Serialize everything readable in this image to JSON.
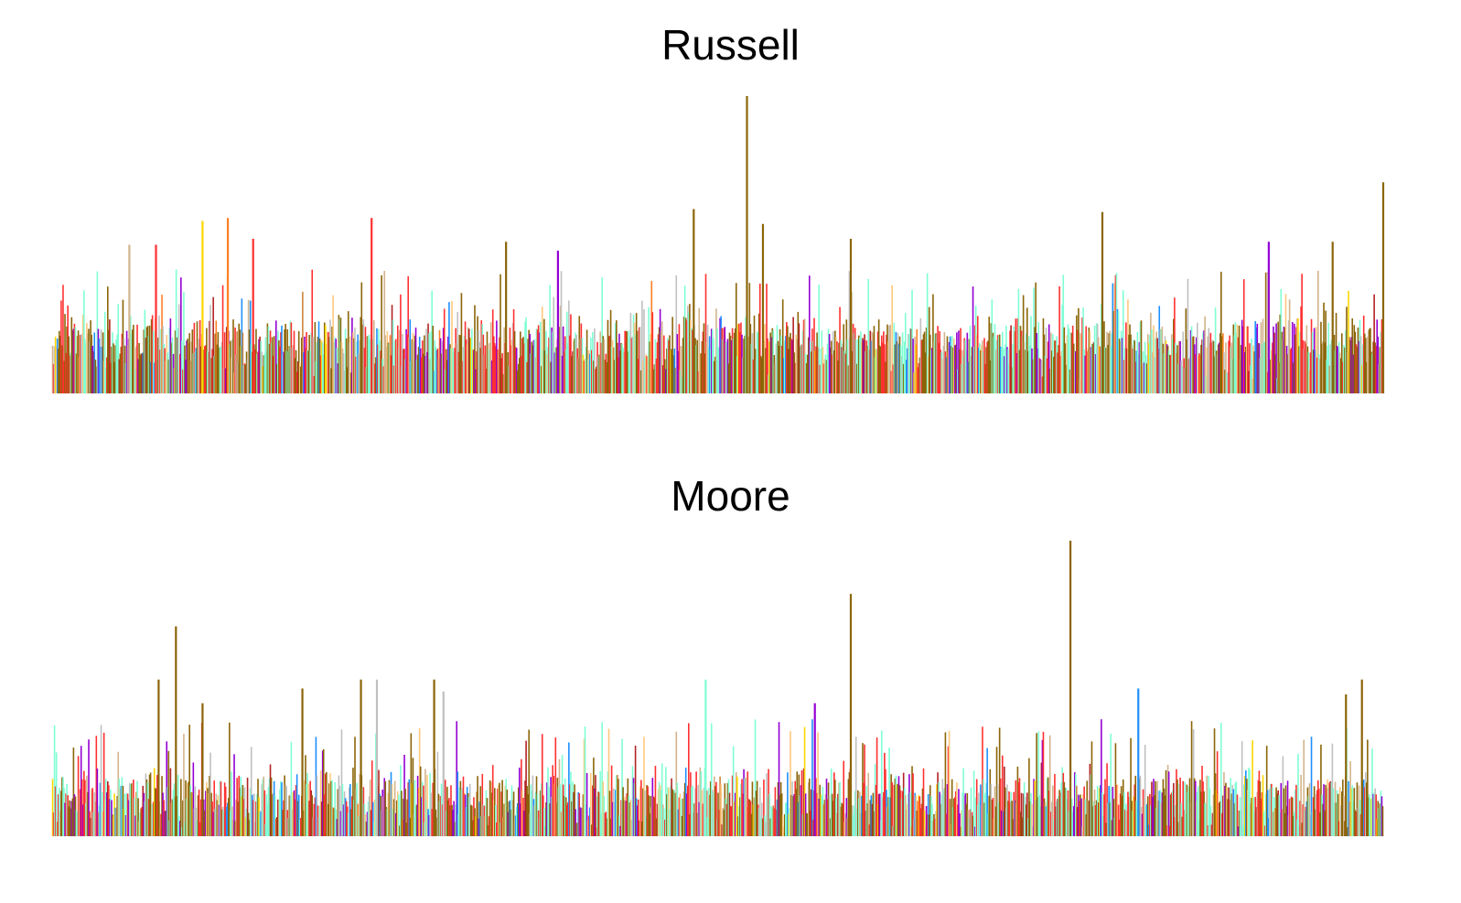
{
  "chart_data": [
    {
      "type": "bar",
      "title": "Russell",
      "xlabel": "",
      "ylabel": "",
      "grid": false,
      "legend": "none",
      "ylim": [
        0,
        100
      ],
      "bar_count": 1400,
      "palette": [
        "#7FFFD4",
        "#8B6508",
        "#FF3030",
        "#9400D3",
        "#C0C0C0",
        "#D2B48C",
        "#FFC87C",
        "#1E90FF",
        "#FFD700",
        "#FF7F24",
        "#B22222",
        "#CD853F"
      ],
      "baseline": [
        18,
        11
      ],
      "typical_max": 38,
      "spikes": [
        {
          "x": 0.522,
          "y": 100,
          "color": "#8B6508"
        },
        {
          "x": 1.0,
          "y": 71,
          "color": "#8B6508"
        },
        {
          "x": 0.482,
          "y": 62,
          "color": "#8B6508"
        },
        {
          "x": 0.789,
          "y": 61,
          "color": "#8B6508"
        },
        {
          "x": 0.132,
          "y": 59,
          "color": "#FF7F24"
        },
        {
          "x": 0.24,
          "y": 59,
          "color": "#FF3030"
        },
        {
          "x": 0.113,
          "y": 58,
          "color": "#FFD700"
        },
        {
          "x": 0.534,
          "y": 57,
          "color": "#8B6508"
        },
        {
          "x": 0.6,
          "y": 52,
          "color": "#8B6508"
        },
        {
          "x": 0.962,
          "y": 51,
          "color": "#8B6508"
        },
        {
          "x": 0.914,
          "y": 51,
          "color": "#9400D3"
        },
        {
          "x": 0.058,
          "y": 50,
          "color": "#D2B48C"
        },
        {
          "x": 0.078,
          "y": 50,
          "color": "#FF3030"
        },
        {
          "x": 0.151,
          "y": 52,
          "color": "#FF3030"
        },
        {
          "x": 0.341,
          "y": 51,
          "color": "#8B6508"
        },
        {
          "x": 0.38,
          "y": 48,
          "color": "#9400D3"
        }
      ]
    },
    {
      "type": "bar",
      "title": "Moore",
      "xlabel": "",
      "ylabel": "",
      "grid": false,
      "legend": "none",
      "ylim": [
        0,
        100
      ],
      "bar_count": 1400,
      "palette": [
        "#7FFFD4",
        "#8B6508",
        "#FF3030",
        "#9400D3",
        "#C0C0C0",
        "#D2B48C",
        "#FFC87C",
        "#1E90FF",
        "#FFD700",
        "#FF7F24",
        "#B22222",
        "#CD853F"
      ],
      "baseline": [
        14,
        11
      ],
      "typical_max": 36,
      "spikes": [
        {
          "x": 0.765,
          "y": 100,
          "color": "#8B6508"
        },
        {
          "x": 0.6,
          "y": 82,
          "color": "#8B6508"
        },
        {
          "x": 0.093,
          "y": 71,
          "color": "#8B6508"
        },
        {
          "x": 0.08,
          "y": 53,
          "color": "#8B6508"
        },
        {
          "x": 0.232,
          "y": 53,
          "color": "#8B6508"
        },
        {
          "x": 0.244,
          "y": 53,
          "color": "#C0C0C0"
        },
        {
          "x": 0.287,
          "y": 53,
          "color": "#8B6508"
        },
        {
          "x": 0.188,
          "y": 50,
          "color": "#8B6508"
        },
        {
          "x": 0.294,
          "y": 49,
          "color": "#C0C0C0"
        },
        {
          "x": 0.984,
          "y": 53,
          "color": "#8B6508"
        },
        {
          "x": 0.972,
          "y": 48,
          "color": "#8B6508"
        },
        {
          "x": 0.491,
          "y": 53,
          "color": "#7FFFD4"
        },
        {
          "x": 0.816,
          "y": 50,
          "color": "#1E90FF"
        },
        {
          "x": 0.113,
          "y": 45,
          "color": "#8B6508"
        },
        {
          "x": 0.573,
          "y": 45,
          "color": "#9400D3"
        }
      ]
    }
  ]
}
